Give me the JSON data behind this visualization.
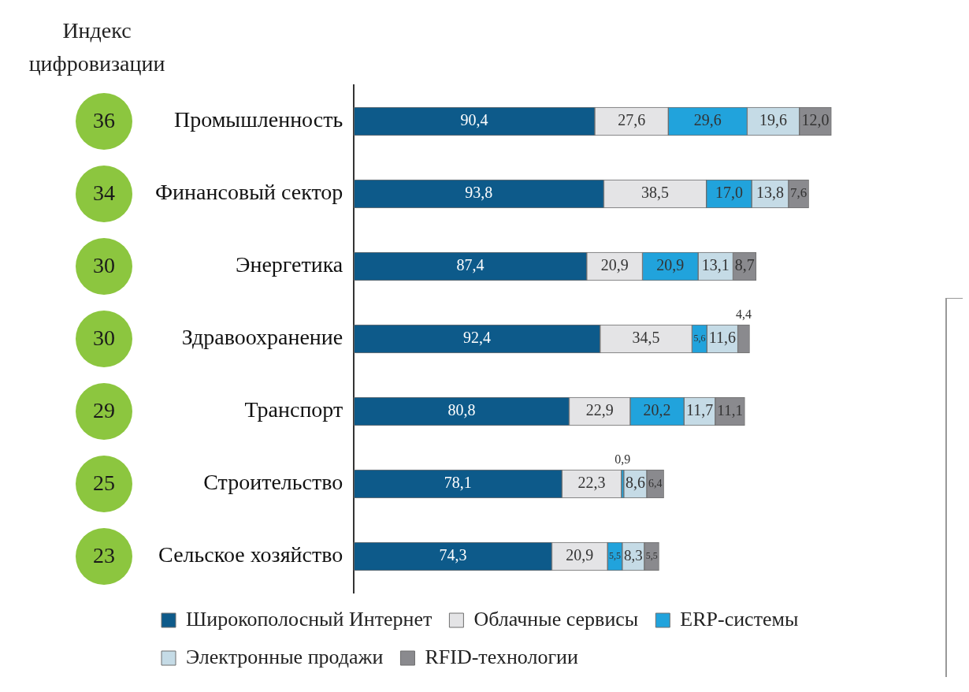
{
  "chart_data": {
    "type": "bar",
    "orientation": "horizontal",
    "stacked": true,
    "grid": false,
    "legend": "bottom left",
    "categories": [
      "Промышленность",
      "Финансовый сектор",
      "Энергетика",
      "Здравоохранение",
      "Транспорт",
      "Строительство",
      "Сельское хозяйство"
    ],
    "series": [
      {
        "name": "Широкополосный Интернет",
        "color": "#0d5a8a",
        "values": [
          90.4,
          93.8,
          87.4,
          92.4,
          80.8,
          78.1,
          74.3
        ],
        "value_labels": [
          "90,4",
          "93,8",
          "87,4",
          "92,4",
          "80,8",
          "78,1",
          "74,3"
        ]
      },
      {
        "name": "Облачные сервисы",
        "color": "#e4e4e6",
        "values": [
          27.6,
          38.5,
          20.9,
          34.5,
          22.9,
          22.3,
          20.9
        ],
        "value_labels": [
          "27,6",
          "38,5",
          "20,9",
          "34,5",
          "22,9",
          "22,3",
          "20,9"
        ]
      },
      {
        "name": "ERP-системы",
        "color": "#21a3dc",
        "values": [
          29.6,
          17.0,
          20.9,
          5.6,
          20.2,
          0.9,
          5.5
        ],
        "value_labels": [
          "29,6",
          "17,0",
          "20,9",
          "5,6",
          "20,2",
          "0,9",
          "5,5"
        ]
      },
      {
        "name": "Электронные продажи",
        "color": "#c5dbe6",
        "values": [
          19.6,
          13.8,
          13.1,
          11.6,
          11.7,
          8.6,
          8.3
        ],
        "value_labels": [
          "19,6",
          "13,8",
          "13,1",
          "11,6",
          "11,7",
          "8,6",
          "8,3"
        ]
      },
      {
        "name": "RFID-технологии",
        "color": "#8a8a8e",
        "values": [
          12.0,
          7.6,
          8.7,
          4.4,
          11.1,
          6.4,
          5.5
        ],
        "value_labels": [
          "12,0",
          "7,6",
          "8,7",
          "4,4",
          "11,1",
          "6,4",
          "5,5"
        ]
      }
    ],
    "annotations": [
      "Индекс цифровизации",
      "36",
      "34",
      "30",
      "30",
      "29",
      "25",
      "23"
    ]
  }
}
